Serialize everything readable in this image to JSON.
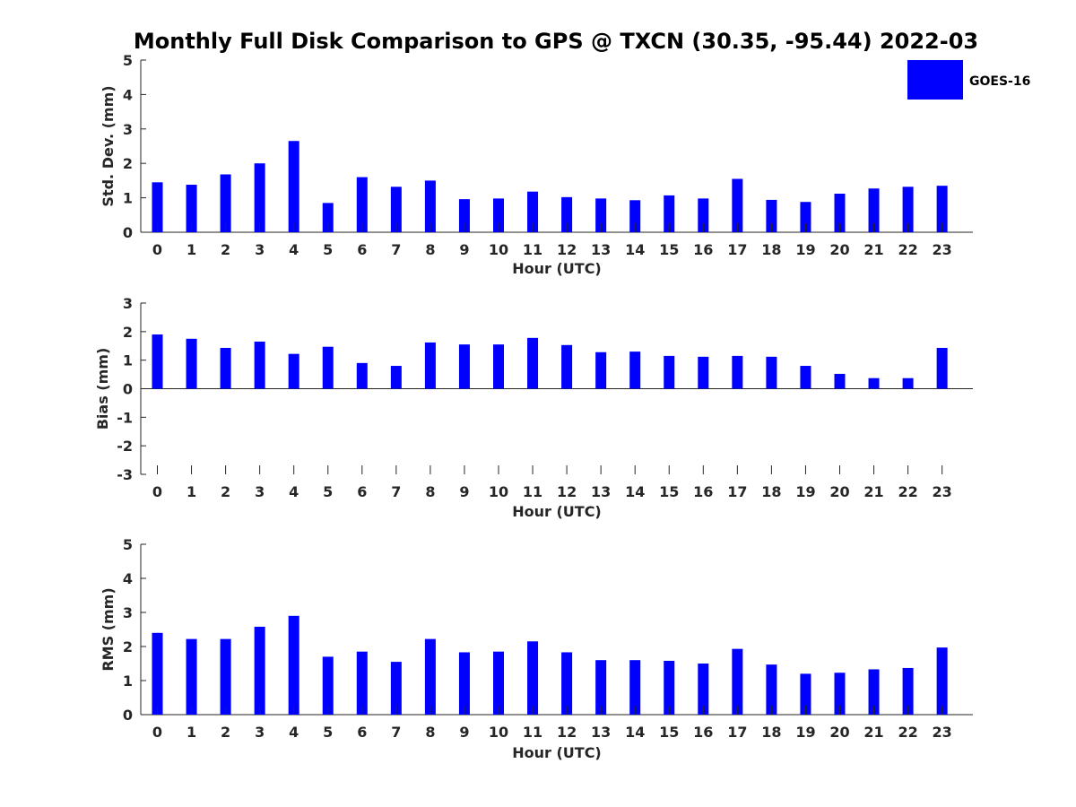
{
  "figure": {
    "title": "Monthly Full Disk Comparison to GPS @ TXCN (30.35, -95.44) 2022-03",
    "legend": {
      "label": "GOES-16",
      "color": "#0000ff"
    }
  },
  "chart_data": [
    {
      "type": "bar",
      "title": "Monthly Full Disk Comparison to GPS @ TXCN (30.35, -95.44) 2022-03",
      "xlabel": "Hour (UTC)",
      "ylabel": "Std. Dev. (mm)",
      "ylim": [
        0,
        5
      ],
      "yticks": [
        "0",
        "1",
        "2",
        "3",
        "4",
        "5"
      ],
      "categories": [
        "0",
        "1",
        "2",
        "3",
        "4",
        "5",
        "6",
        "7",
        "8",
        "9",
        "10",
        "11",
        "12",
        "13",
        "14",
        "15",
        "16",
        "17",
        "18",
        "19",
        "20",
        "21",
        "22",
        "23"
      ],
      "series": [
        {
          "name": "GOES-16",
          "color": "#0000ff",
          "values": [
            1.45,
            1.38,
            1.68,
            2.0,
            2.65,
            0.85,
            1.6,
            1.32,
            1.5,
            0.96,
            0.98,
            1.18,
            1.02,
            0.98,
            0.93,
            1.07,
            0.98,
            1.55,
            0.94,
            0.88,
            1.12,
            1.27,
            1.32,
            1.35
          ]
        }
      ],
      "legend": "top-right",
      "grid": false
    },
    {
      "type": "bar",
      "xlabel": "Hour (UTC)",
      "ylabel": "Bias (mm)",
      "ylim": [
        -3,
        3
      ],
      "yticks": [
        "-3",
        "-2",
        "-1",
        "0",
        "1",
        "2",
        "3"
      ],
      "categories": [
        "0",
        "1",
        "2",
        "3",
        "4",
        "5",
        "6",
        "7",
        "8",
        "9",
        "10",
        "11",
        "12",
        "13",
        "14",
        "15",
        "16",
        "17",
        "18",
        "19",
        "20",
        "21",
        "22",
        "23"
      ],
      "series": [
        {
          "name": "GOES-16",
          "color": "#0000ff",
          "values": [
            1.9,
            1.75,
            1.43,
            1.65,
            1.22,
            1.47,
            0.9,
            0.8,
            1.62,
            1.55,
            1.55,
            1.78,
            1.53,
            1.28,
            1.3,
            1.15,
            1.12,
            1.15,
            1.12,
            0.8,
            0.52,
            0.37,
            0.37,
            1.43
          ]
        }
      ],
      "grid": false
    },
    {
      "type": "bar",
      "xlabel": "Hour (UTC)",
      "ylabel": "RMS (mm)",
      "ylim": [
        0,
        5
      ],
      "yticks": [
        "0",
        "1",
        "2",
        "3",
        "4",
        "5"
      ],
      "categories": [
        "0",
        "1",
        "2",
        "3",
        "4",
        "5",
        "6",
        "7",
        "8",
        "9",
        "10",
        "11",
        "12",
        "13",
        "14",
        "15",
        "16",
        "17",
        "18",
        "19",
        "20",
        "21",
        "22",
        "23"
      ],
      "series": [
        {
          "name": "GOES-16",
          "color": "#0000ff",
          "values": [
            2.4,
            2.22,
            2.22,
            2.58,
            2.9,
            1.7,
            1.85,
            1.55,
            2.22,
            1.83,
            1.85,
            2.15,
            1.83,
            1.6,
            1.6,
            1.58,
            1.5,
            1.93,
            1.47,
            1.2,
            1.23,
            1.33,
            1.37,
            1.97
          ]
        }
      ],
      "grid": false
    }
  ]
}
